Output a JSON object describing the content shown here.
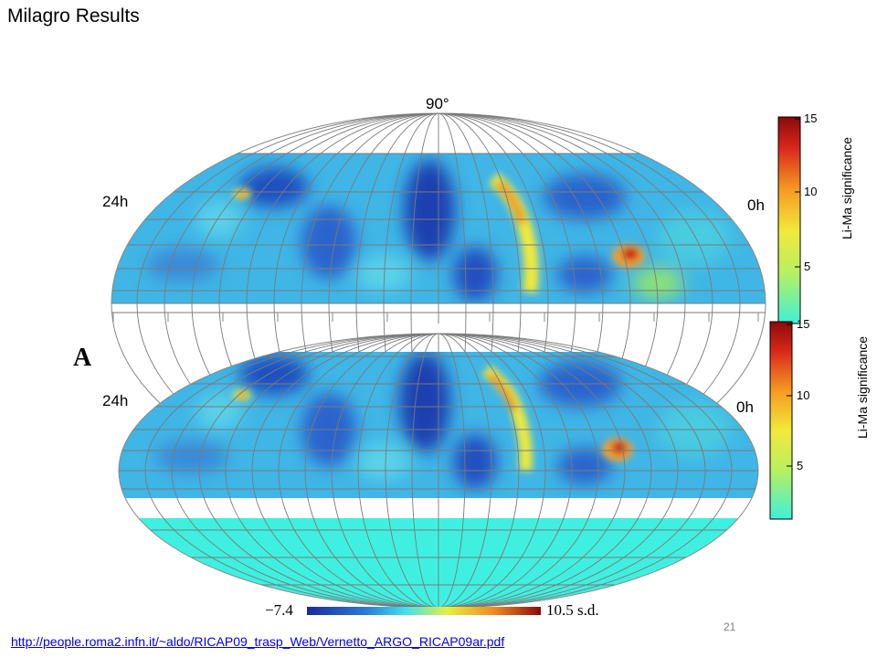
{
  "title": "Milagro Results",
  "top_map": {
    "pole_label": "90°",
    "left_ra_label": "24h",
    "right_ra_label": "0h",
    "colorbar_label": "Li-Ma significance",
    "colorbar_ticks": [
      "15",
      "10",
      "5"
    ]
  },
  "bottom_map": {
    "panel_letter": "A",
    "left_ra_label": "24h",
    "right_ra_label": "0h",
    "colorbar_label": "Li-Ma significance",
    "colorbar_ticks": [
      "15",
      "10",
      "5"
    ],
    "scale_min": "−7.4",
    "scale_max": "10.5 s.d."
  },
  "page_number": "21",
  "source_link": "http://people.roma2.infn.it/~aldo/RICAP09_trasp_Web/Vernetto_ARGO_RICAP09ar.pdf",
  "colors": {
    "low": "#1a3fb0",
    "mid": "#3fb6e6",
    "cyan": "#3ff0e0",
    "yellow": "#f2e93a",
    "hot": "#d4221a"
  }
}
